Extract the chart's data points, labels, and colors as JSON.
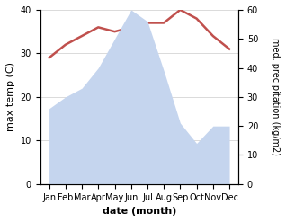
{
  "months": [
    "Jan",
    "Feb",
    "Mar",
    "Apr",
    "May",
    "Jun",
    "Jul",
    "Aug",
    "Sep",
    "Oct",
    "Nov",
    "Dec"
  ],
  "temperature": [
    29,
    32,
    34,
    36,
    35,
    36,
    37,
    37,
    40,
    38,
    34,
    31
  ],
  "precipitation": [
    26,
    30,
    33,
    40,
    50,
    60,
    56,
    39,
    21,
    14,
    20,
    20
  ],
  "temp_color": "#c0504d",
  "precip_color": "#c5d5ee",
  "xlabel": "date (month)",
  "ylabel_left": "max temp (C)",
  "ylabel_right": "med. precipitation (kg/m2)",
  "ylim_left": [
    0,
    40
  ],
  "ylim_right": [
    0,
    60
  ],
  "yticks_left": [
    0,
    10,
    20,
    30,
    40
  ],
  "yticks_right": [
    0,
    10,
    20,
    30,
    40,
    50,
    60
  ],
  "background_color": "#ffffff",
  "grid_color": "#cccccc"
}
